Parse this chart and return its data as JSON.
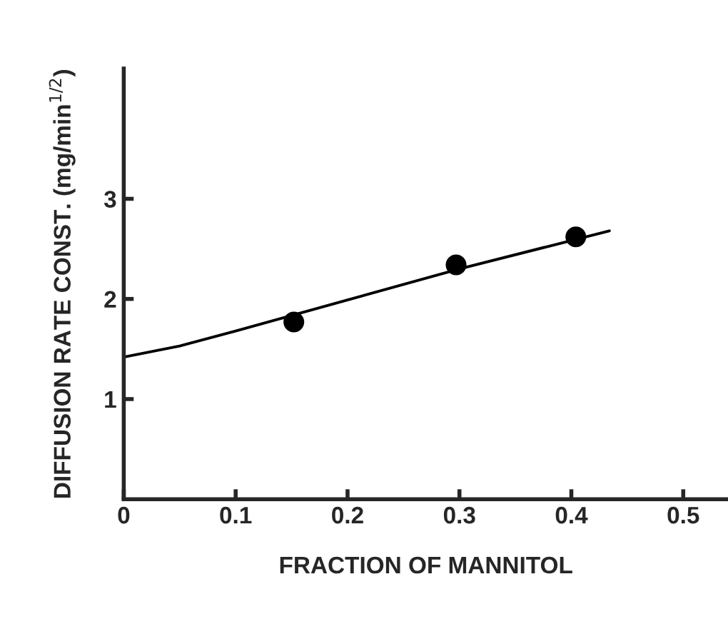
{
  "chart_data": {
    "type": "scatter",
    "xlabel": "FRACTION OF MANNITOL",
    "ylabel": "DIFFUSION RATE CONST. (mg/min$^{1/2}$)",
    "xlim": [
      0,
      0.54
    ],
    "ylim": [
      0,
      4.3
    ],
    "xticks": [
      0,
      0.1,
      0.2,
      0.3,
      0.4,
      0.5
    ],
    "yticks": [
      1,
      2,
      3
    ],
    "grid": false,
    "legend": false,
    "series": [
      {
        "color": "#000000",
        "marker": "circle",
        "x": [
          0.152,
          0.297,
          0.404
        ],
        "values": [
          1.77,
          2.34,
          2.62
        ]
      },
      {
        "type": "line",
        "color": "#000000",
        "marker": "none",
        "line_style": "solid",
        "x": [
          0,
          0.05,
          0.1,
          0.2,
          0.3,
          0.434
        ],
        "values": [
          1.42,
          1.53,
          1.68,
          1.99,
          2.3,
          2.68
        ]
      }
    ]
  }
}
